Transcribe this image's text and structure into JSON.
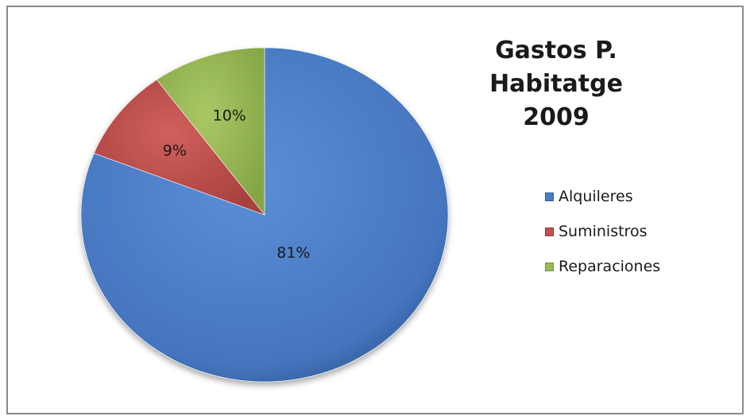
{
  "chart_data": {
    "type": "pie",
    "title": [
      "Gastos P. Habitatge",
      "2009"
    ],
    "slices": [
      {
        "name": "Alquileres",
        "value": 81,
        "label": "81%",
        "color": "#4a7dc4"
      },
      {
        "name": "Suministros",
        "value": 9,
        "label": "9%",
        "color": "#c0504d"
      },
      {
        "name": "Reparaciones",
        "value": 10,
        "label": "10%",
        "color": "#9bbb59"
      }
    ],
    "start_angle": "12 o'clock",
    "direction": "clockwise",
    "legend_position": "right"
  }
}
